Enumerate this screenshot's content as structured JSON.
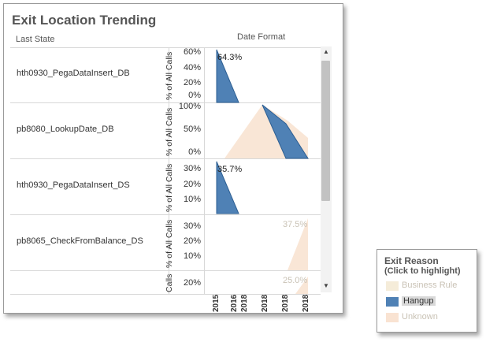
{
  "title": "Exit Location Trending",
  "headers": {
    "last_state": "Last State",
    "date_format": "Date Format"
  },
  "axis_title": "% of All Calls",
  "axis_title_cut": "Calls",
  "rows": [
    {
      "label": "hth0930_PegaDataInsert_DB",
      "ticks": [
        "60%",
        "40%",
        "20%",
        "0%"
      ],
      "value_label": "64.3%"
    },
    {
      "label": "pb8080_LookupDate_DB",
      "ticks": [
        "100%",
        "50%",
        "0%"
      ],
      "value_label": ""
    },
    {
      "label": "hth0930_PegaDataInsert_DS",
      "ticks": [
        "30%",
        "20%",
        "10%"
      ],
      "value_label": "35.7%"
    },
    {
      "label": "pb8065_CheckFromBalance_DS",
      "ticks": [
        "30%",
        "20%",
        "10%"
      ],
      "value_label": "37.5%"
    },
    {
      "label": "",
      "ticks": [
        "20%"
      ],
      "value_label": "25.0%"
    }
  ],
  "x_ticks": [
    "2015",
    "2016",
    "2018",
    "2018",
    "2018",
    "2018"
  ],
  "legend": {
    "title": "Exit Reason",
    "subtitle": "(Click to highlight)",
    "items": [
      {
        "label": "Business Rule",
        "color": "#f5ecd9",
        "text_color": "#c9c2b5"
      },
      {
        "label": "Hangup",
        "color": "#4f81b5",
        "text_color": "#333333"
      },
      {
        "label": "Unknown",
        "color": "#f9e3d2",
        "text_color": "#c9c2b5"
      }
    ]
  },
  "colors": {
    "hangup": "#4f81b5",
    "hangup_stroke": "#2d5f93",
    "unknown": "#f9e6d6",
    "business_rule": "#f5ecd9"
  }
}
